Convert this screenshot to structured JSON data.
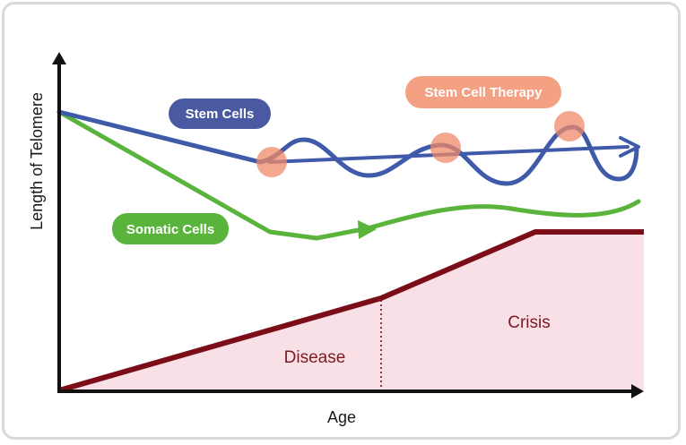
{
  "axes": {
    "y_label": "Length of Telomere",
    "x_label": "Age"
  },
  "labels": {
    "stem_cells": "Stem Cells",
    "somatic_cells": "Somatic Cells",
    "stem_cell_therapy": "Stem Cell Therapy"
  },
  "regions": {
    "disease": "Disease",
    "crisis": "Crisis"
  },
  "colors": {
    "stem_line": "#3f5aa8",
    "stem_pill": "#4a5aa2",
    "somatic_line": "#5ab43c",
    "somatic_pill": "#5ab43c",
    "therapy_pill": "#f4a083",
    "therapy_dot": "#f08a6a",
    "risk_line": "#7a0d17",
    "risk_fill": "#f9e0e6",
    "axis": "#111111"
  }
}
